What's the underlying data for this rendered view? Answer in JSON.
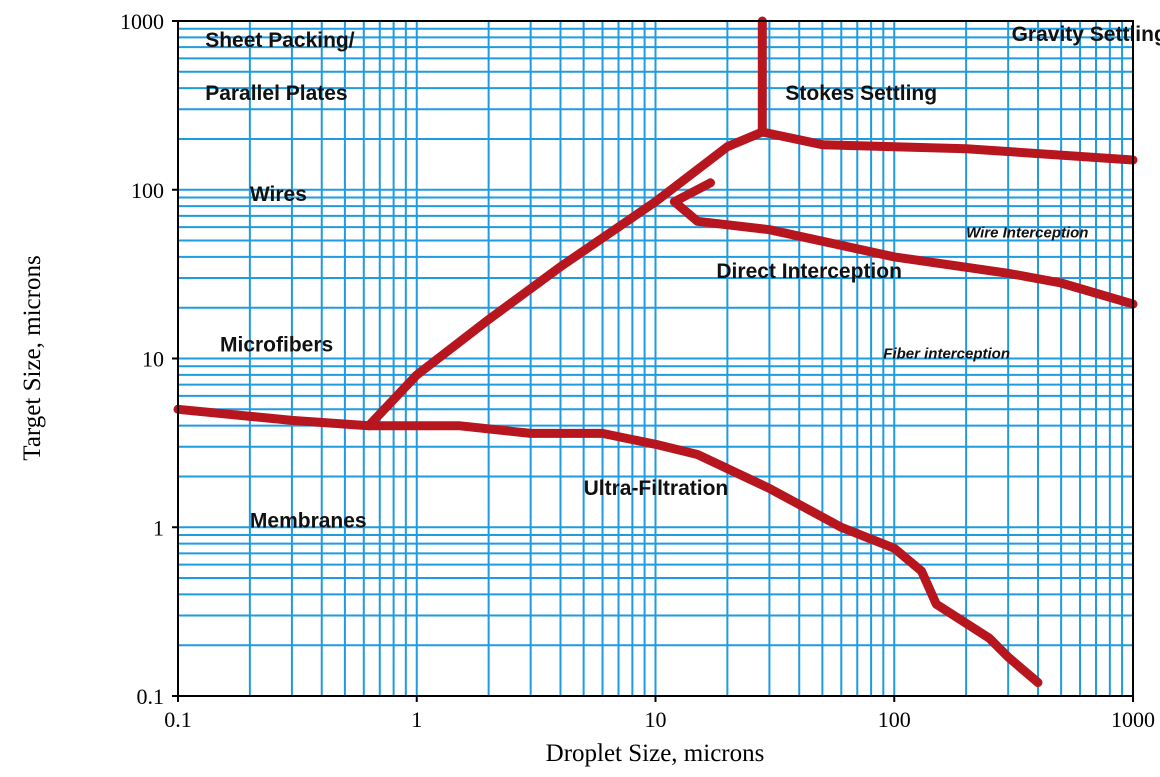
{
  "chart_data": {
    "type": "line",
    "xlabel": "Droplet Size, microns",
    "ylabel": "Target Size, microns",
    "x_scale": "log",
    "y_scale": "log",
    "xlim": [
      0.1,
      1000
    ],
    "ylim": [
      0.1,
      1000
    ],
    "grid": true,
    "x_ticks": [
      {
        "value": 0.1,
        "label": "0.1"
      },
      {
        "value": 1,
        "label": "1"
      },
      {
        "value": 10,
        "label": "10"
      },
      {
        "value": 100,
        "label": "100"
      },
      {
        "value": 1000,
        "label": "1000"
      }
    ],
    "y_ticks": [
      {
        "value": 0.1,
        "label": "0.1"
      },
      {
        "value": 1,
        "label": "1"
      },
      {
        "value": 10,
        "label": "10"
      },
      {
        "value": 100,
        "label": "100"
      },
      {
        "value": 1000,
        "label": "1000"
      }
    ],
    "colors": {
      "grid": "#1f9be0",
      "boundary": "#b7161f",
      "axis": "#000000"
    },
    "series": [
      {
        "points": [
          [
            0.1,
            5.0
          ],
          [
            0.3,
            4.3
          ],
          [
            0.63,
            4.0
          ],
          [
            1.5,
            4.0
          ],
          [
            3.0,
            3.6
          ],
          [
            6.0,
            3.6
          ],
          [
            10,
            3.1
          ],
          [
            15,
            2.7
          ],
          [
            30,
            1.7
          ],
          [
            60,
            1.0
          ],
          [
            100,
            0.75
          ],
          [
            130,
            0.55
          ],
          [
            150,
            0.35
          ],
          [
            250,
            0.22
          ],
          [
            300,
            0.17
          ],
          [
            400,
            0.12
          ]
        ]
      },
      {
        "points": [
          [
            0.63,
            4.0
          ],
          [
            1.0,
            8.0
          ],
          [
            2.0,
            17
          ],
          [
            4.0,
            35
          ],
          [
            10,
            85
          ],
          [
            20,
            180
          ],
          [
            28,
            220
          ]
        ]
      },
      {
        "points": [
          [
            28,
            1000
          ],
          [
            28,
            220
          ]
        ]
      },
      {
        "points": [
          [
            28,
            220
          ],
          [
            50,
            185
          ],
          [
            100,
            180
          ],
          [
            200,
            175
          ],
          [
            1000,
            150
          ]
        ]
      },
      {
        "points": [
          [
            17,
            110
          ],
          [
            12,
            85
          ],
          [
            15,
            65
          ],
          [
            30,
            58
          ],
          [
            100,
            40
          ],
          [
            300,
            32
          ],
          [
            500,
            28
          ],
          [
            1000,
            21
          ]
        ]
      }
    ],
    "annotations": [
      {
        "text": "Sheet Packing/",
        "x": 0.13,
        "y": 700,
        "size": "normal"
      },
      {
        "text": "Parallel Plates",
        "x": 0.13,
        "y": 340,
        "size": "normal"
      },
      {
        "text": "Gravity Settling",
        "x": 310,
        "y": 760,
        "size": "normal"
      },
      {
        "text": "Stokes Settling",
        "x": 35,
        "y": 340,
        "size": "normal"
      },
      {
        "text": "Wires",
        "x": 0.2,
        "y": 86,
        "size": "normal"
      },
      {
        "text": "Wire Interception",
        "x": 200,
        "y": 52,
        "size": "small"
      },
      {
        "text": "Direct Interception",
        "x": 18,
        "y": 30,
        "size": "normal"
      },
      {
        "text": "Microfibers",
        "x": 0.15,
        "y": 11,
        "size": "normal"
      },
      {
        "text": "Fiber interception",
        "x": 90,
        "y": 10,
        "size": "small"
      },
      {
        "text": "Ultra-Filtration",
        "x": 5,
        "y": 1.55,
        "size": "normal"
      },
      {
        "text": "Membranes",
        "x": 0.2,
        "y": 1.0,
        "size": "normal"
      }
    ]
  }
}
